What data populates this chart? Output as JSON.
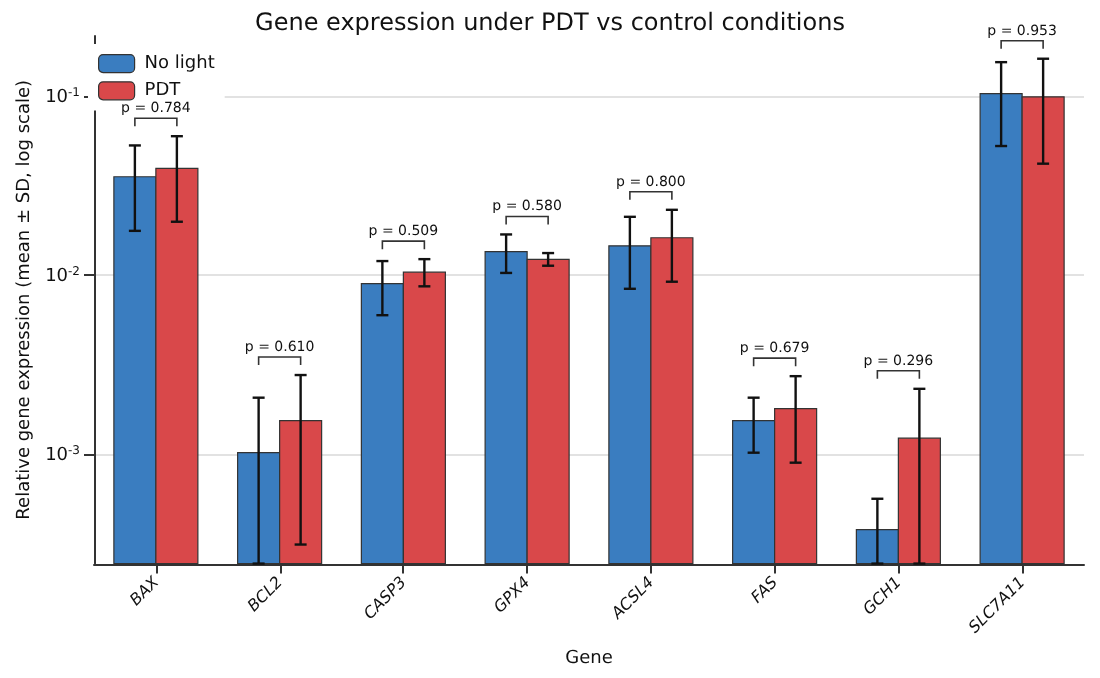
{
  "chart_data": {
    "type": "bar",
    "title": "Gene expression under PDT vs control conditions",
    "xlabel": "Gene",
    "ylabel": "Relative gene expression (mean ± SD, log scale)",
    "categories": [
      "BAX",
      "BCL2",
      "CASP3",
      "GPX4",
      "ACSL4",
      "FAS",
      "GCH1",
      "SLC7A11"
    ],
    "series": [
      {
        "name": "No light",
        "color": "#3a7dc0",
        "values": [
          0.0355,
          0.00102,
          0.00897,
          0.01355,
          0.0146,
          0.00154,
          0.000379,
          0.1033
        ],
        "errors": [
          [
            0.0177,
            0.0531
          ],
          [
            0.000245,
            0.00207
          ],
          [
            0.00598,
            0.012
          ],
          [
            0.0103,
            0.0169
          ],
          [
            0.0084,
            0.0212
          ],
          [
            0.00102,
            0.00207
          ],
          [
            0.000245,
            0.000564
          ],
          [
            0.0527,
            0.155
          ]
        ]
      },
      {
        "name": "PDT",
        "color": "#d9484a",
        "values": [
          0.0395,
          0.00154,
          0.0104,
          0.01225,
          0.0162,
          0.0018,
          0.00123,
          0.0992
        ],
        "errors": [
          [
            0.0199,
            0.0598
          ],
          [
            0.000313,
            0.00277
          ],
          [
            0.00867,
            0.0123
          ],
          [
            0.0113,
            0.0133
          ],
          [
            0.0092,
            0.0232
          ],
          [
            0.000897,
            0.00273
          ],
          [
            0.000245,
            0.00232
          ],
          [
            0.042,
            0.162
          ]
        ]
      }
    ],
    "log": "y",
    "ylim": [
      0.000245,
      0.217
    ],
    "yticks": [
      {
        "value": 0.001,
        "label": "10$^{-3}$"
      },
      {
        "value": 0.01,
        "label": "10$^{-2}$"
      },
      {
        "value": 0.1,
        "label": "10$^{-1}$"
      }
    ],
    "grid": "y",
    "legend": "top left",
    "annotations": [
      "p = 0.784",
      "p = 0.610",
      "p = 0.509",
      "p = 0.580",
      "p = 0.800",
      "p = 0.679",
      "p = 0.296",
      "p = 0.953"
    ]
  }
}
